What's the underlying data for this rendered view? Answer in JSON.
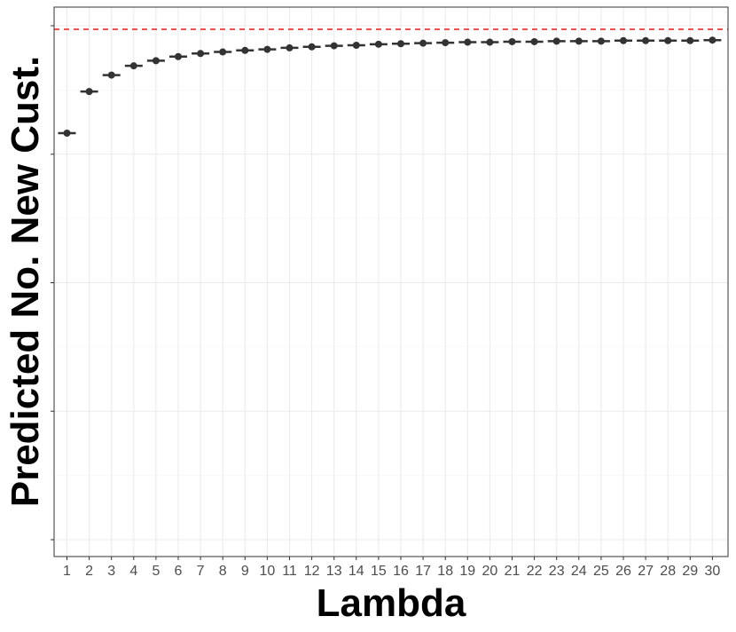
{
  "chart_data": {
    "type": "scatter",
    "title": "",
    "xlabel": "Lambda",
    "ylabel": "Predicted No. New Cust.",
    "x": [
      1,
      2,
      3,
      4,
      5,
      6,
      7,
      8,
      9,
      10,
      11,
      12,
      13,
      14,
      15,
      16,
      17,
      18,
      19,
      20,
      21,
      22,
      23,
      24,
      25,
      26,
      27,
      28,
      29,
      30
    ],
    "x_tick_labels": [
      "1",
      "2",
      "3",
      "4",
      "5",
      "6",
      "7",
      "8",
      "9",
      "10",
      "11",
      "12",
      "13",
      "14",
      "15",
      "16",
      "17",
      "18",
      "19",
      "20",
      "21",
      "22",
      "23",
      "24",
      "25",
      "26",
      "27",
      "28",
      "29",
      "30"
    ],
    "y_tick_labels_visible": false,
    "y_relative_range": [
      0,
      1
    ],
    "series": [
      {
        "values": [
          0.791,
          0.872,
          0.904,
          0.922,
          0.932,
          0.94,
          0.946,
          0.949,
          0.952,
          0.954,
          0.957,
          0.959,
          0.961,
          0.962,
          0.964,
          0.965,
          0.966,
          0.967,
          0.968,
          0.968,
          0.969,
          0.969,
          0.97,
          0.97,
          0.97,
          0.971,
          0.971,
          0.971,
          0.971,
          0.972
        ],
        "color": "#333333",
        "marker": "point-with-horizontal-errorbar"
      }
    ],
    "reference_line": {
      "value": 0.993,
      "color": "#e31a1c",
      "style": "dashed"
    },
    "grid": true,
    "theme": "bw",
    "axis_color": "#333333",
    "grid_color": "#ebebeb"
  }
}
